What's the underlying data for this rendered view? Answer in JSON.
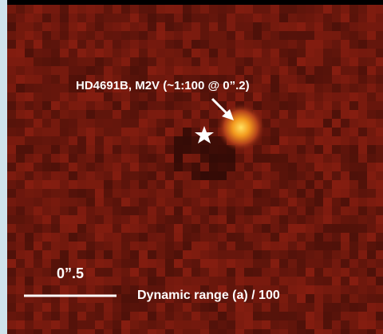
{
  "annotation": {
    "label": "HD4691B, M2V (~1:100 @ 0”.2)"
  },
  "scale_bar": {
    "label": "0”.5"
  },
  "caption": "Dynamic range (a) / 100"
}
